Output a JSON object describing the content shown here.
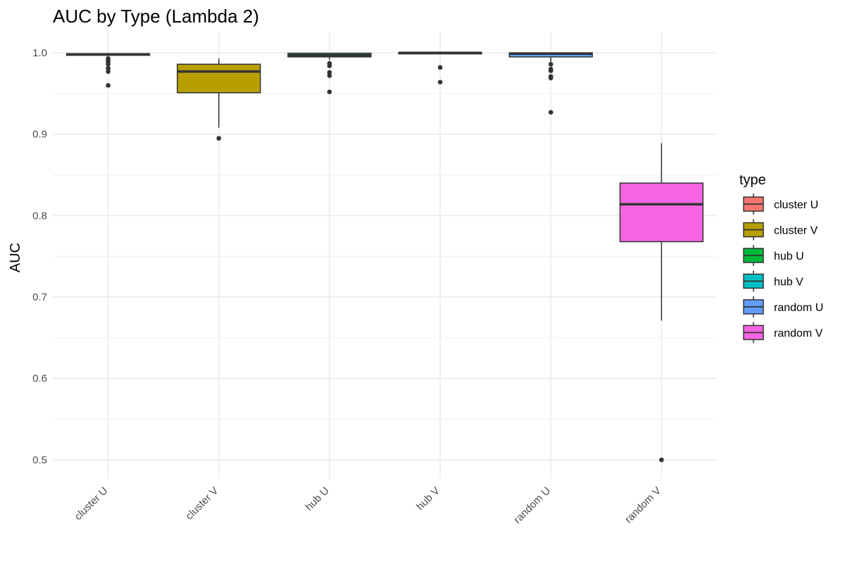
{
  "chart_data": {
    "type": "boxplot",
    "title": "AUC by Type (Lambda 2)",
    "xlabel": "",
    "ylabel": "AUC",
    "ylim": [
      0.477,
      1.026
    ],
    "yticks": [
      0.5,
      0.6,
      0.7,
      0.8,
      0.9,
      1.0
    ],
    "ytick_labels": [
      "0.5",
      "0.6",
      "0.7",
      "0.8",
      "0.9",
      "1.0"
    ],
    "grid": true,
    "legend": {
      "title": "type",
      "position": "right"
    },
    "categories": [
      "cluster U",
      "cluster V",
      "hub U",
      "hub V",
      "random U",
      "random V"
    ],
    "series": [
      {
        "name": "cluster U",
        "color": "#F8766D",
        "whisker_low": 0.995,
        "q1": 0.997,
        "median": 0.998,
        "q3": 0.999,
        "whisker_high": 1.0,
        "outliers": [
          0.993,
          0.991,
          0.989,
          0.986,
          0.981,
          0.977,
          0.96
        ]
      },
      {
        "name": "cluster V",
        "color": "#B79F00",
        "whisker_low": 0.908,
        "q1": 0.951,
        "median": 0.977,
        "q3": 0.986,
        "whisker_high": 0.993,
        "outliers": [
          0.895
        ]
      },
      {
        "name": "hub U",
        "color": "#00BA38",
        "whisker_low": 0.991,
        "q1": 0.995,
        "median": 0.997,
        "q3": 0.9995,
        "whisker_high": 1.0,
        "outliers": [
          0.987,
          0.984,
          0.976,
          0.972,
          0.952
        ]
      },
      {
        "name": "hub V",
        "color": "#00BFC4",
        "whisker_low": 0.999,
        "q1": 0.9995,
        "median": 1.0,
        "q3": 1.0,
        "whisker_high": 1.0,
        "outliers": [
          0.982,
          0.964
        ]
      },
      {
        "name": "random U",
        "color": "#619CFF",
        "whisker_low": 0.989,
        "q1": 0.995,
        "median": 0.999,
        "q3": 1.0,
        "whisker_high": 1.0,
        "outliers": [
          0.986,
          0.98,
          0.978,
          0.971,
          0.969,
          0.927
        ]
      },
      {
        "name": "random V",
        "color": "#F564E3",
        "whisker_low": 0.671,
        "q1": 0.768,
        "median": 0.814,
        "q3": 0.84,
        "whisker_high": 0.889,
        "outliers": [
          0.5
        ]
      }
    ]
  }
}
